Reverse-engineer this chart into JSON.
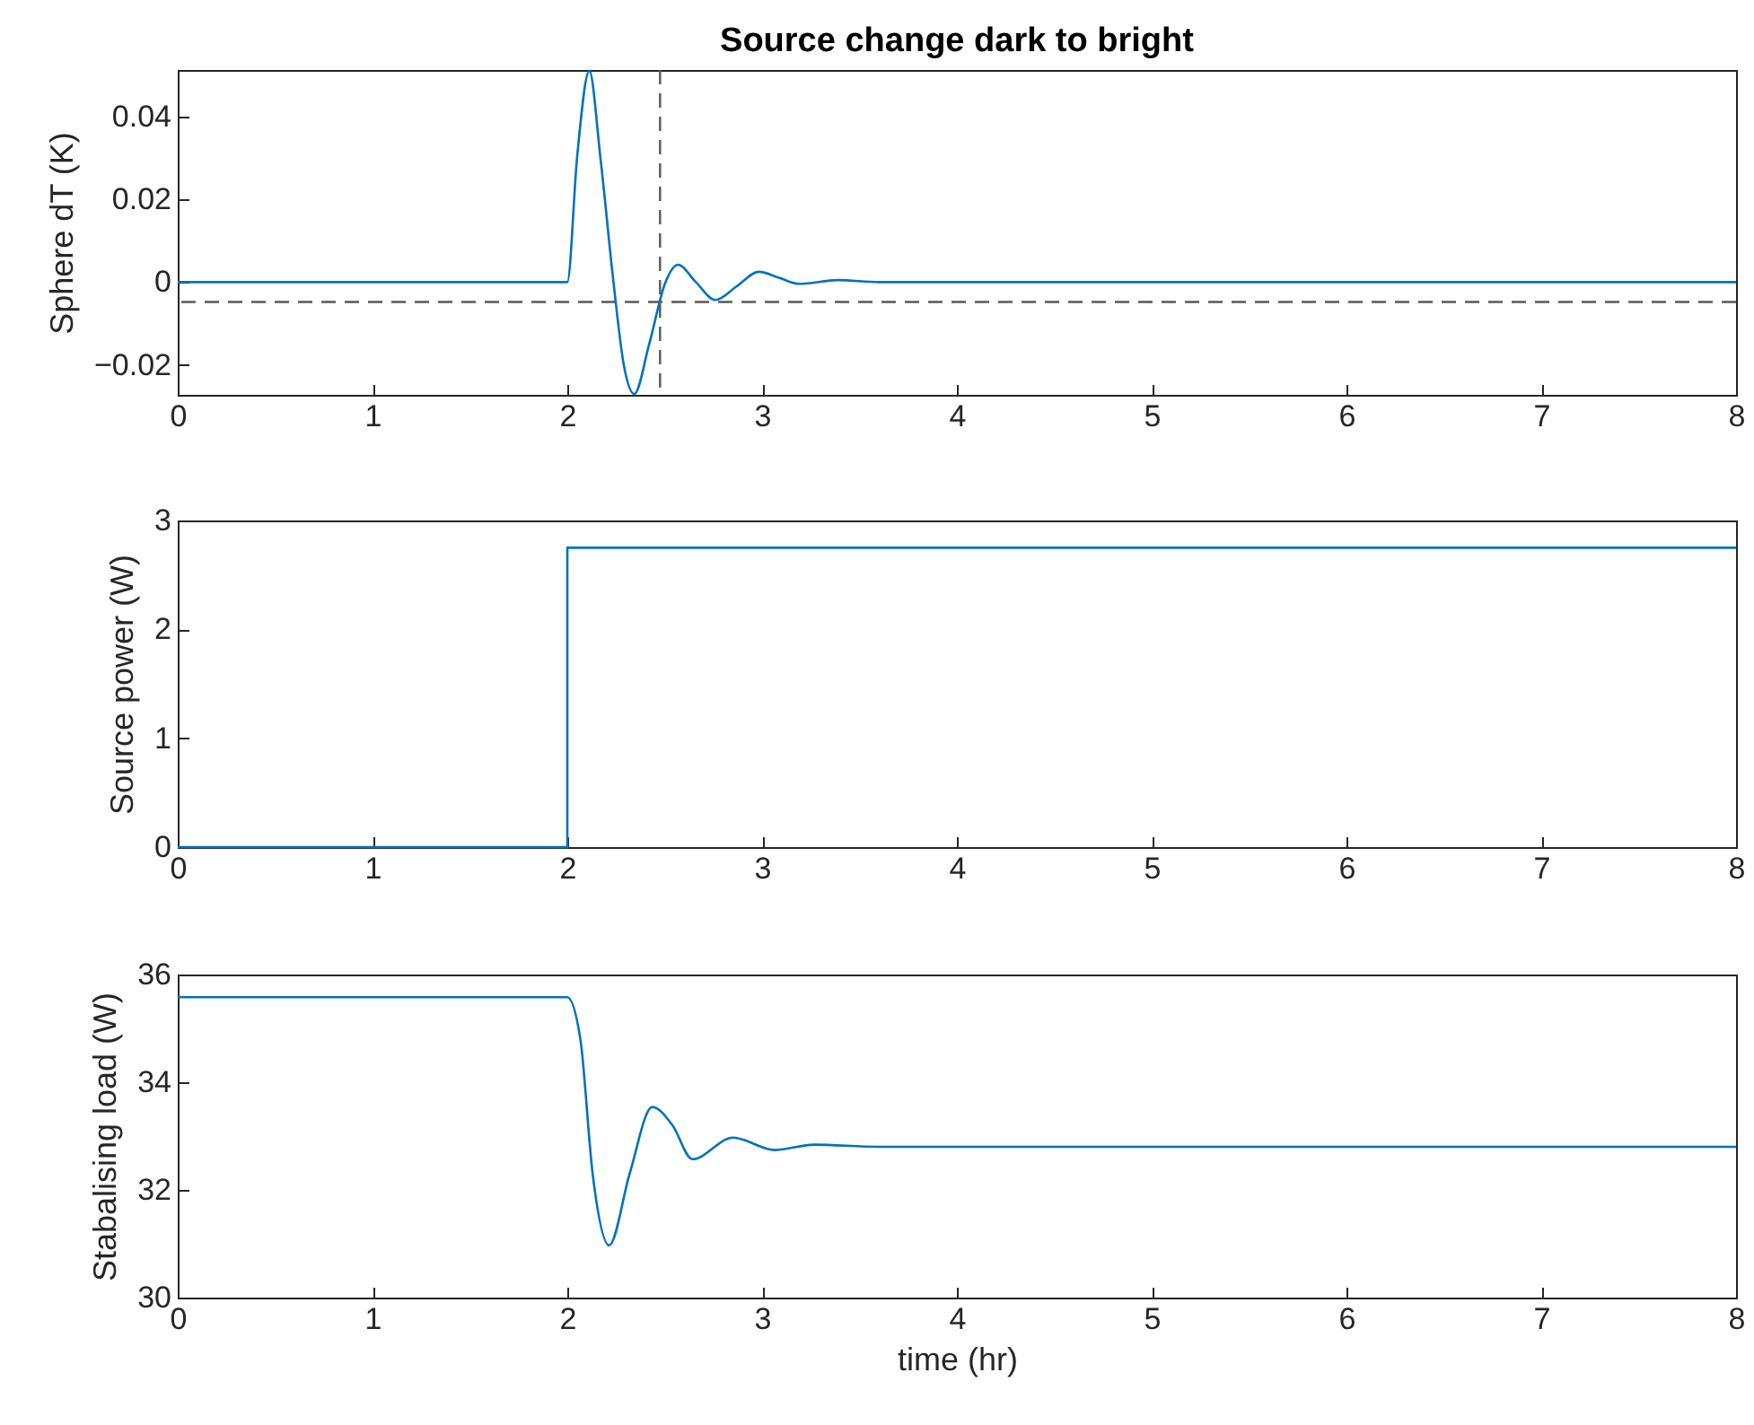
{
  "chart_data": [
    {
      "type": "line",
      "title": "Source change dark to bright",
      "ylabel": "Sphere dT (K)",
      "xlim": [
        0,
        8
      ],
      "xticks": [
        0,
        1,
        2,
        3,
        4,
        5,
        6,
        7,
        8
      ],
      "ylim": [
        -0.0272,
        0.0512
      ],
      "yticks": [
        -0.02,
        0,
        0.02,
        0.04
      ],
      "series": [
        {
          "color": "#0072bd",
          "x": [
            0,
            2.0,
            2.05,
            2.113,
            2.17,
            2.237,
            2.29,
            2.344,
            2.42,
            2.504,
            2.569,
            2.66,
            2.759,
            2.87,
            2.983,
            3.09,
            3.19,
            3.39,
            3.6,
            4,
            8
          ],
          "values": [
            0,
            0,
            0.03,
            0.051,
            0.03,
            0,
            -0.02,
            -0.027,
            -0.015,
            0,
            0.0042,
            0,
            -0.0043,
            -0.001,
            0.0025,
            0.001,
            -0.0004,
            0.0005,
            0,
            0,
            0
          ]
        }
      ],
      "ref_lines": [
        {
          "axis": "y",
          "value": -0.0048,
          "color": "#595959",
          "line_style": "dashed"
        },
        {
          "axis": "x",
          "value": 2.476,
          "color": "#595959",
          "line_style": "dashed"
        }
      ]
    },
    {
      "type": "step",
      "ylabel": "Source power (W)",
      "xlim": [
        0,
        8
      ],
      "xticks": [
        0,
        1,
        2,
        3,
        4,
        5,
        6,
        7,
        8
      ],
      "ylim": [
        0,
        3
      ],
      "yticks": [
        0,
        1,
        2,
        3
      ],
      "series": [
        {
          "color": "#0072bd",
          "x": [
            0,
            2,
            8
          ],
          "values": [
            0,
            2.75,
            2.75
          ]
        }
      ]
    },
    {
      "type": "line",
      "xlabel": "time (hr)",
      "ylabel": "Stabalising load (W)",
      "xlim": [
        0,
        8
      ],
      "xticks": [
        0,
        1,
        2,
        3,
        4,
        5,
        6,
        7,
        8
      ],
      "ylim": [
        30,
        36
      ],
      "yticks": [
        30,
        32,
        34,
        36
      ],
      "series": [
        {
          "color": "#0072bd",
          "x": [
            0,
            2.0,
            2.067,
            2.13,
            2.215,
            2.32,
            2.436,
            2.54,
            2.642,
            2.85,
            3.066,
            3.266,
            3.6,
            8
          ],
          "values": [
            35.58,
            35.58,
            34.8,
            32.3,
            30.97,
            32.3,
            33.54,
            33.2,
            32.57,
            32.97,
            32.74,
            32.84,
            32.8,
            32.8
          ]
        }
      ]
    }
  ]
}
